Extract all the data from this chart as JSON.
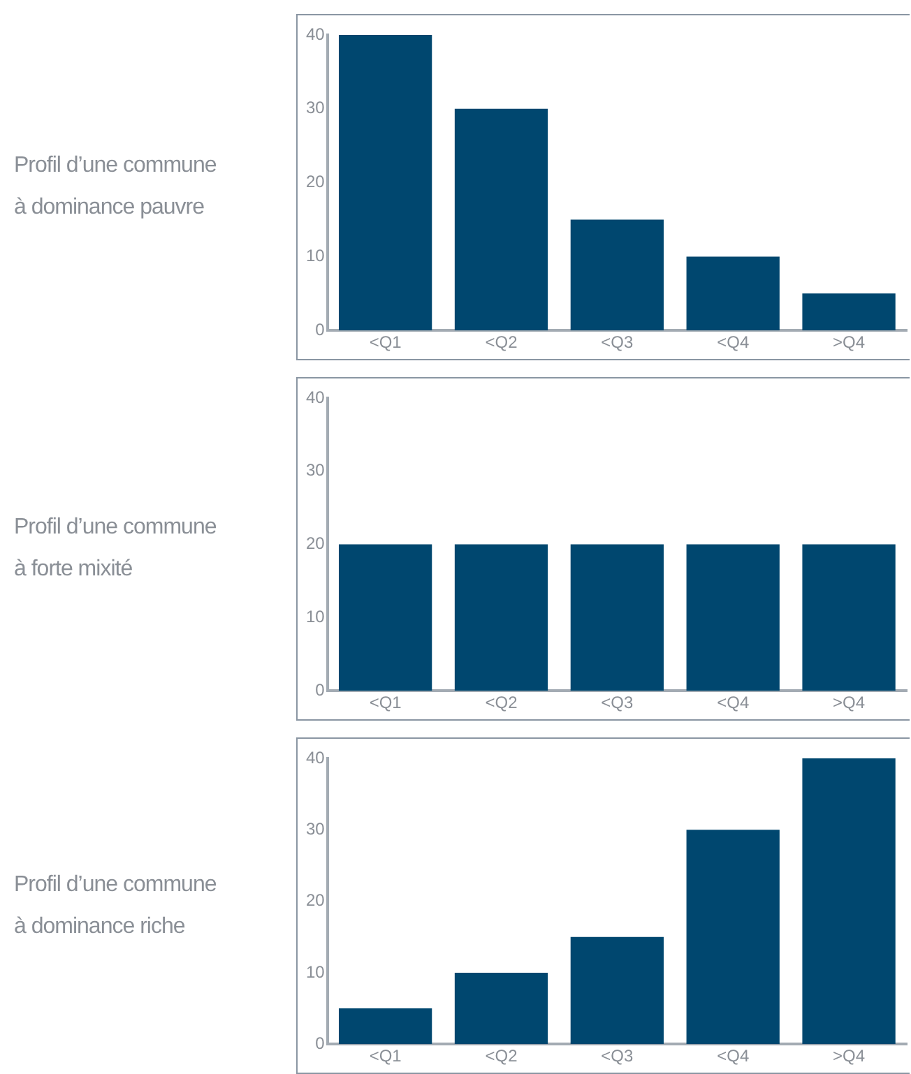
{
  "chart_data": [
    {
      "type": "bar",
      "title": "Profil d’une commune\nà dominance pauvre",
      "categories": [
        "<Q1",
        "<Q2",
        "<Q3",
        "<Q4",
        ">Q4"
      ],
      "values": [
        40,
        30,
        15,
        10,
        5
      ],
      "color": "#00476f",
      "ylim": [
        0,
        40
      ],
      "yticks": [
        0,
        10,
        20,
        30,
        40
      ],
      "grid": false,
      "legend": false
    },
    {
      "type": "bar",
      "title": "Profil d’une commune\nà forte mixité",
      "categories": [
        "<Q1",
        "<Q2",
        "<Q3",
        "<Q4",
        ">Q4"
      ],
      "values": [
        20,
        20,
        20,
        20,
        20
      ],
      "color": "#00476f",
      "ylim": [
        0,
        40
      ],
      "yticks": [
        0,
        10,
        20,
        30,
        40
      ],
      "grid": false,
      "legend": false
    },
    {
      "type": "bar",
      "title": "Profil d’une commune\nà dominance riche",
      "categories": [
        "<Q1",
        "<Q2",
        "<Q3",
        "<Q4",
        ">Q4"
      ],
      "values": [
        5,
        10,
        15,
        30,
        40
      ],
      "color": "#00476f",
      "ylim": [
        0,
        40
      ],
      "yticks": [
        0,
        10,
        20,
        30,
        40
      ],
      "grid": false,
      "legend": false
    }
  ]
}
